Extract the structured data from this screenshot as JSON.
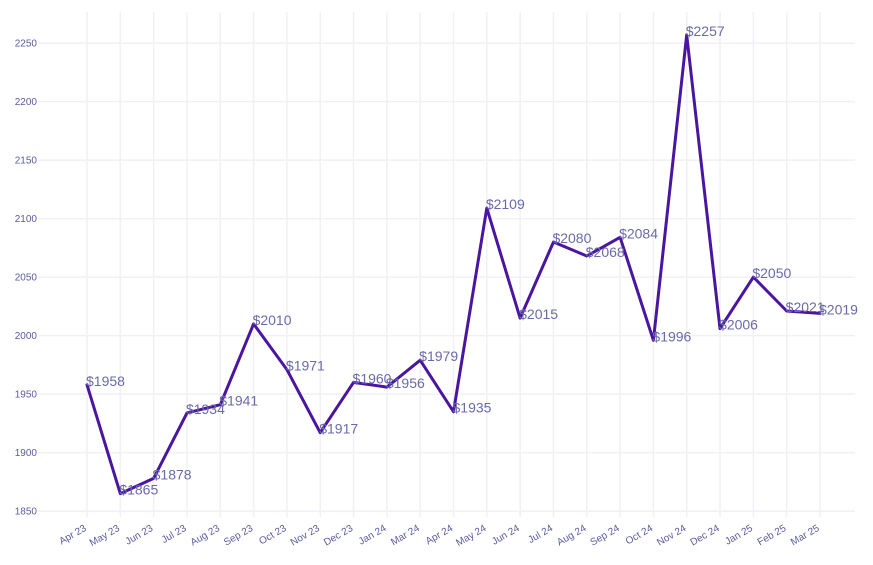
{
  "chart_data": {
    "type": "line",
    "title": "",
    "xlabel": "",
    "ylabel": "",
    "categories": [
      "Apr 23",
      "May 23",
      "Jun 23",
      "Jul 23",
      "Aug 23",
      "Sep 23",
      "Oct 23",
      "Nov 23",
      "Dec 23",
      "Jan 24",
      "Mar 24",
      "Apr 24",
      "May 24",
      "Jun 24",
      "Jul 24",
      "Aug 24",
      "Sep 24",
      "Oct 24",
      "Nov 24",
      "Dec 24",
      "Jan 25",
      "Feb 25",
      "Mar 25"
    ],
    "series": [
      {
        "values": [
          1958,
          1865,
          1878,
          1934,
          1941,
          2010,
          1971,
          1917,
          1960,
          1956,
          1979,
          1935,
          2109,
          2015,
          2080,
          2068,
          2084,
          1996,
          2257,
          2006,
          2050,
          2021,
          2019
        ],
        "labels": [
          "$1958",
          "$1865",
          "$1878",
          "$1934",
          "$1941",
          "$2010",
          "$1971",
          "$1917",
          "$1960",
          "$1956",
          "$1979",
          "$1935",
          "$2109",
          "$2015",
          "$2080",
          "$2068",
          "$2084",
          "$1996",
          "$2257",
          "$2006",
          "$2050",
          "$2021",
          "$2019"
        ]
      }
    ],
    "yticks": [
      "1850",
      "1900",
      "1950",
      "2000",
      "2050",
      "2100",
      "2150",
      "2200",
      "2250"
    ],
    "ylim": [
      1845,
      2268
    ],
    "grid": true,
    "line_color": "#4a16a0",
    "label_color": "#6a6aa8"
  }
}
